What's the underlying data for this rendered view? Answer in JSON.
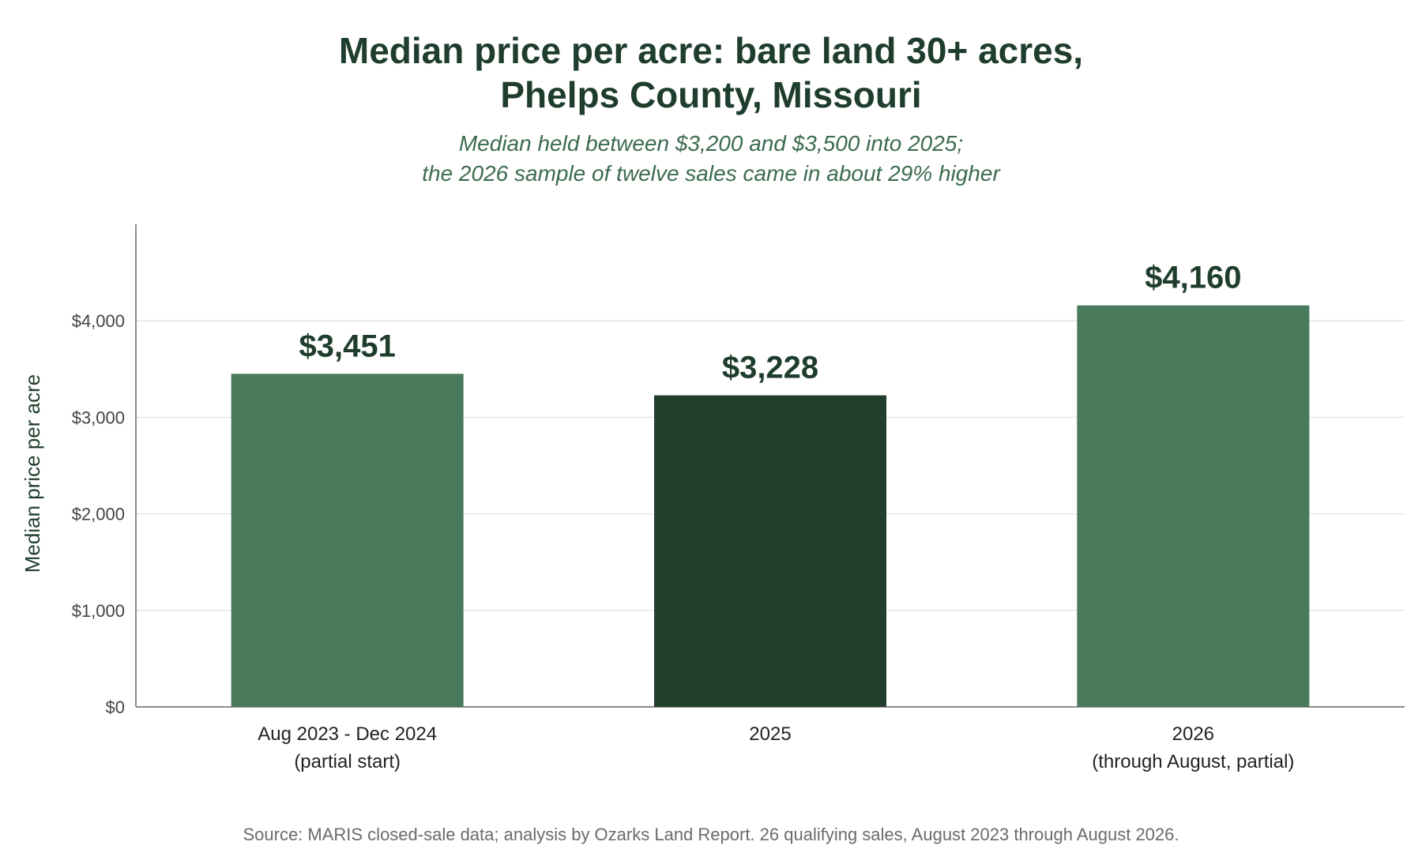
{
  "title_lines": [
    "Median price per acre: bare land 30+ acres,",
    "Phelps County, Missouri"
  ],
  "subtitle_lines": [
    "Median held between $3,200 and $3,500 into 2025;",
    "the 2026 sample of twelve sales came in about 29% higher"
  ],
  "source": "Source: MARIS closed-sale data; analysis by Ozarks Land Report. 26 qualifying sales, August 2023 through August 2026.",
  "colors": {
    "bar_default": "#4a7a5c",
    "bar_highlight": "#223e2d",
    "title": "#1f3d2c",
    "subtitle": "#3d6b4f",
    "grid": "#e6e6e6",
    "axis": "#666666"
  },
  "chart_data": {
    "type": "bar",
    "categories": [
      [
        "Aug 2023 - Dec 2024",
        "(partial start)"
      ],
      [
        "2025"
      ],
      [
        "2026",
        "(through August, partial)"
      ]
    ],
    "values": [
      3451,
      3228,
      4160
    ],
    "data_labels": [
      "$3,451",
      "$3,228",
      "$4,160"
    ],
    "highlight_index": 1,
    "ylabel": "Median price per acre",
    "ylim": [
      0,
      5000
    ],
    "yticks": [
      0,
      1000,
      2000,
      3000,
      4000
    ],
    "ytick_labels": [
      "$0",
      "$1,000",
      "$2,000",
      "$3,000",
      "$4,000"
    ],
    "grid": true,
    "legend": "none"
  }
}
